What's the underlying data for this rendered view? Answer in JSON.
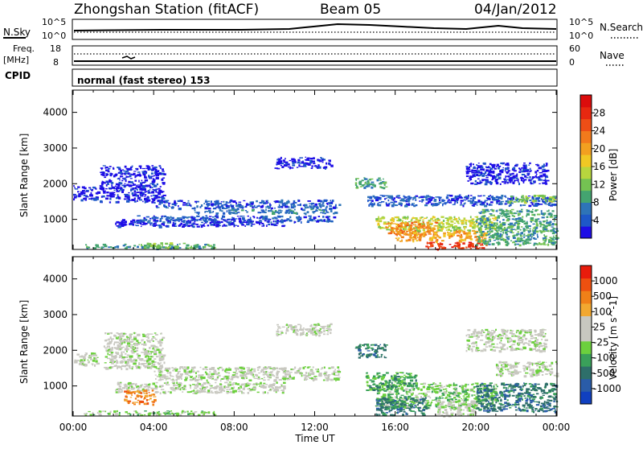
{
  "header": {
    "station": "Zhongshan Station (fitACF)",
    "beam": "Beam 05",
    "date": "04/Jan/2012"
  },
  "strip_panels": {
    "nsky": {
      "label": "N.Sky",
      "ticks_left": [
        "10^5",
        "10^0"
      ],
      "right_label": "N.Search",
      "ticks_right": [
        "10^5",
        "10^0"
      ]
    },
    "freq": {
      "label_top": "Freq.",
      "label_unit": "[MHz]",
      "ticks_left": [
        "18",
        "8"
      ],
      "right_label": "Nave",
      "ticks_right": [
        "60",
        "0"
      ]
    },
    "cpid": {
      "label": "CPID",
      "text": "normal (fast stereo) 153"
    }
  },
  "chart_data": [
    {
      "type": "heatmap",
      "panel": "power",
      "xlabel": "",
      "ylabel": "Slant Range [km]",
      "x_ticks": [
        "00:00",
        "04:00",
        "08:00",
        "12:00",
        "16:00",
        "20:00",
        "00:00"
      ],
      "xlim_hours": [
        0,
        24
      ],
      "y_ticks": [
        1000,
        2000,
        3000,
        4000
      ],
      "ylim_km": [
        180,
        4600
      ],
      "colorbar": {
        "label": "Power [dB]",
        "ticks": [
          "4",
          "8",
          "12",
          "16",
          "20",
          "24",
          "28"
        ],
        "colors": [
          "#1e0ee6",
          "#1e58c8",
          "#2e74b8",
          "#44a470",
          "#74c252",
          "#b8d63e",
          "#f0c824",
          "#f2a020",
          "#f27a1c",
          "#ee4e16",
          "#e82810",
          "#dc0c0c"
        ]
      },
      "bands": [
        {
          "t0": 0.0,
          "t1": 1.2,
          "r0": 1560,
          "r1": 1960,
          "level": 0
        },
        {
          "t0": 1.3,
          "t1": 4.5,
          "r0": 1500,
          "r1": 2520,
          "level": 0
        },
        {
          "t0": 4.0,
          "t1": 13.2,
          "r0": 1320,
          "r1": 1560,
          "level": 1
        },
        {
          "t0": 6.0,
          "t1": 13.0,
          "r0": 1180,
          "r1": 1300,
          "level": 2
        },
        {
          "t0": 2.0,
          "t1": 10.5,
          "r0": 820,
          "r1": 1020,
          "level": 0
        },
        {
          "t0": 3.0,
          "t1": 13.0,
          "r0": 940,
          "r1": 1120,
          "level": 1
        },
        {
          "t0": 10.0,
          "t1": 12.8,
          "r0": 2440,
          "r1": 2760,
          "level": 0
        },
        {
          "t0": 0.5,
          "t1": 7.0,
          "r0": 200,
          "r1": 320,
          "level": 3
        },
        {
          "t0": 3.5,
          "t1": 5.5,
          "r0": 220,
          "r1": 360,
          "level": 4
        },
        {
          "t0": 14.6,
          "t1": 24.0,
          "r0": 1400,
          "r1": 1700,
          "level": 1
        },
        {
          "t0": 15.0,
          "t1": 21.0,
          "r0": 700,
          "r1": 1100,
          "level": 5
        },
        {
          "t0": 15.5,
          "t1": 18.0,
          "r0": 600,
          "r1": 950,
          "level": 8
        },
        {
          "t0": 16.0,
          "t1": 20.5,
          "r0": 400,
          "r1": 700,
          "level": 7
        },
        {
          "t0": 17.5,
          "t1": 20.5,
          "r0": 180,
          "r1": 380,
          "level": 10
        },
        {
          "t0": 20.0,
          "t1": 24.0,
          "r0": 300,
          "r1": 1300,
          "level": 3
        },
        {
          "t0": 21.5,
          "t1": 24.0,
          "r0": 1500,
          "r1": 1700,
          "level": 4
        },
        {
          "t0": 19.5,
          "t1": 23.5,
          "r0": 2000,
          "r1": 2600,
          "level": 0
        },
        {
          "t0": 14.0,
          "t1": 15.5,
          "r0": 1900,
          "r1": 2200,
          "level": 3
        }
      ]
    },
    {
      "type": "heatmap",
      "panel": "velocity",
      "xlabel": "Time UT",
      "ylabel": "Slant Range [km]",
      "x_ticks": [
        "00:00",
        "04:00",
        "08:00",
        "12:00",
        "16:00",
        "20:00",
        "00:00"
      ],
      "xlim_hours": [
        0,
        24
      ],
      "y_ticks": [
        1000,
        2000,
        3000,
        4000
      ],
      "ylim_km": [
        180,
        4600
      ],
      "colorbar": {
        "label": "Velocity [m s^-1]",
        "ticks": [
          "1000",
          "500",
          "100",
          "25",
          "-25",
          "-100",
          "-500",
          "-1000"
        ],
        "colors": [
          "#1040c0",
          "#2a5ca8",
          "#2e6f6a",
          "#3aa05a",
          "#6cd03e",
          "#c8c8c0",
          "#c8c8c0",
          "#f2a830",
          "#f08018",
          "#ee5010",
          "#e81c0c"
        ]
      },
      "bands": [
        {
          "t0": 0.0,
          "t1": 1.2,
          "r0": 1600,
          "r1": 1960,
          "level": 5
        },
        {
          "t0": 1.5,
          "t1": 4.5,
          "r0": 1500,
          "r1": 2520,
          "level": 5
        },
        {
          "t0": 4.0,
          "t1": 13.2,
          "r0": 1180,
          "r1": 1560,
          "level": 5
        },
        {
          "t0": 2.0,
          "t1": 10.5,
          "r0": 820,
          "r1": 1120,
          "level": 5
        },
        {
          "t0": 10.0,
          "t1": 12.8,
          "r0": 2440,
          "r1": 2760,
          "level": 5
        },
        {
          "t0": 0.5,
          "t1": 7.0,
          "r0": 200,
          "r1": 320,
          "level": 4
        },
        {
          "t0": 2.5,
          "t1": 4.0,
          "r0": 500,
          "r1": 900,
          "level": 8
        },
        {
          "t0": 15.0,
          "t1": 21.0,
          "r0": 400,
          "r1": 1100,
          "level": 4
        },
        {
          "t0": 14.5,
          "t1": 17.0,
          "r0": 900,
          "r1": 1400,
          "level": 3
        },
        {
          "t0": 15.0,
          "t1": 17.5,
          "r0": 200,
          "r1": 700,
          "level": 2
        },
        {
          "t0": 18.0,
          "t1": 20.0,
          "r0": 180,
          "r1": 600,
          "level": 5
        },
        {
          "t0": 20.0,
          "t1": 24.0,
          "r0": 300,
          "r1": 1100,
          "level": 2
        },
        {
          "t0": 21.0,
          "t1": 24.0,
          "r0": 1300,
          "r1": 1700,
          "level": 5
        },
        {
          "t0": 19.5,
          "t1": 23.5,
          "r0": 2000,
          "r1": 2600,
          "level": 5
        },
        {
          "t0": 14.0,
          "t1": 15.5,
          "r0": 1800,
          "r1": 2200,
          "level": 2
        }
      ]
    }
  ]
}
